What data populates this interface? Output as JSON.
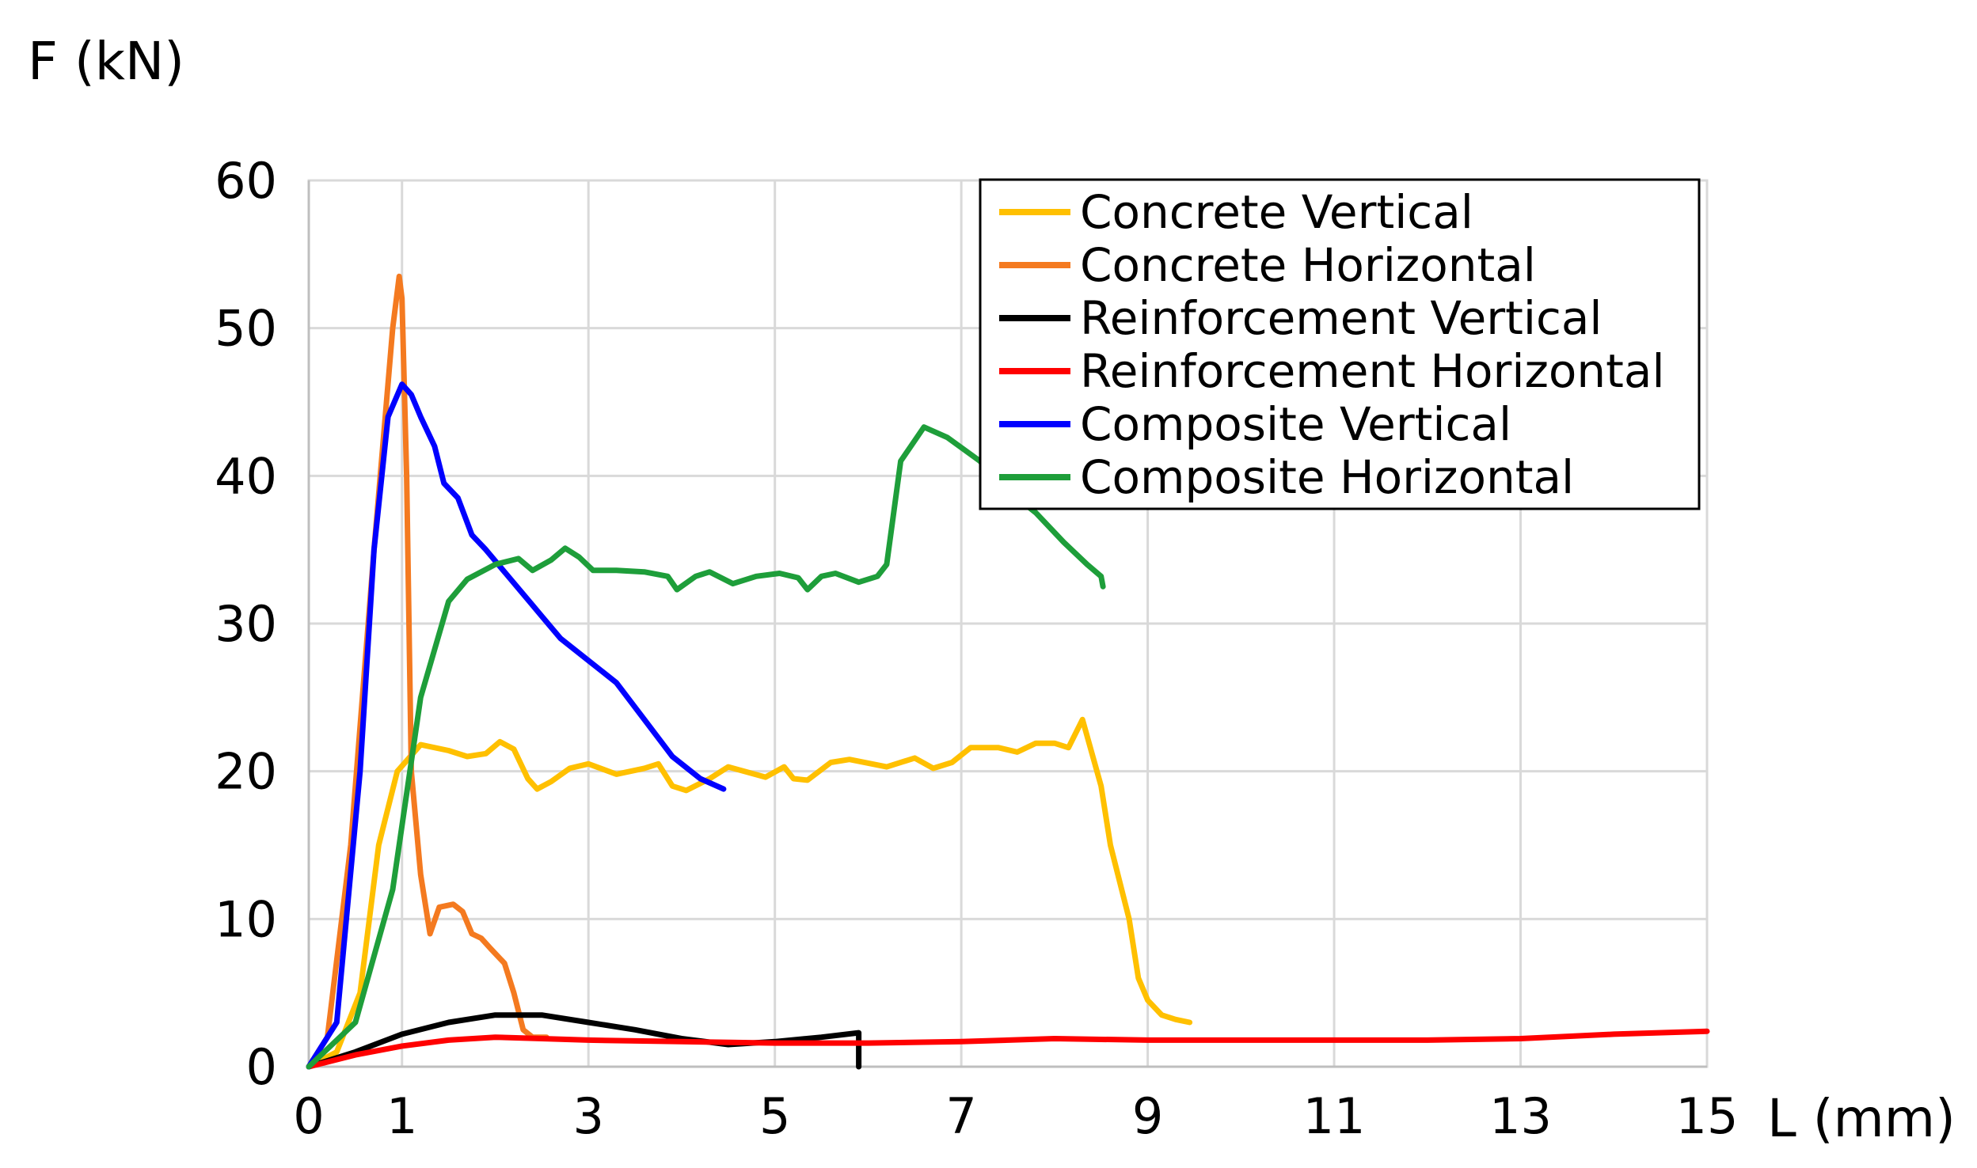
{
  "chart_data": {
    "type": "line",
    "xlabel": "L (mm)",
    "ylabel": "F (kN)",
    "xlim": [
      0,
      15
    ],
    "ylim": [
      0,
      60
    ],
    "x_ticks": [
      0,
      1,
      3,
      5,
      7,
      9,
      11,
      13,
      15
    ],
    "y_ticks": [
      0,
      10,
      20,
      30,
      40,
      50,
      60
    ],
    "grid": true,
    "legend_position": "top-right",
    "series": [
      {
        "name": "Concrete  Vertical",
        "color": "#FFC000",
        "points": [
          [
            0,
            0
          ],
          [
            0.3,
            1
          ],
          [
            0.55,
            5
          ],
          [
            0.75,
            15
          ],
          [
            0.95,
            20
          ],
          [
            1.2,
            21.8
          ],
          [
            1.5,
            21.4
          ],
          [
            1.7,
            21
          ],
          [
            1.9,
            21.2
          ],
          [
            2.05,
            22
          ],
          [
            2.2,
            21.5
          ],
          [
            2.35,
            19.5
          ],
          [
            2.45,
            18.8
          ],
          [
            2.6,
            19.3
          ],
          [
            2.8,
            20.2
          ],
          [
            3,
            20.5
          ],
          [
            3.3,
            19.8
          ],
          [
            3.6,
            20.2
          ],
          [
            3.75,
            20.5
          ],
          [
            3.9,
            19
          ],
          [
            4.05,
            18.7
          ],
          [
            4.3,
            19.5
          ],
          [
            4.5,
            20.3
          ],
          [
            4.9,
            19.6
          ],
          [
            5.1,
            20.3
          ],
          [
            5.2,
            19.5
          ],
          [
            5.35,
            19.4
          ],
          [
            5.6,
            20.6
          ],
          [
            5.8,
            20.8
          ],
          [
            6.2,
            20.3
          ],
          [
            6.5,
            20.9
          ],
          [
            6.7,
            20.2
          ],
          [
            6.9,
            20.6
          ],
          [
            7.1,
            21.6
          ],
          [
            7.4,
            21.6
          ],
          [
            7.6,
            21.3
          ],
          [
            7.8,
            21.9
          ],
          [
            8.0,
            21.9
          ],
          [
            8.15,
            21.6
          ],
          [
            8.3,
            23.5
          ],
          [
            8.5,
            19
          ],
          [
            8.6,
            15
          ],
          [
            8.8,
            10
          ],
          [
            8.9,
            6
          ],
          [
            9.0,
            4.5
          ],
          [
            9.15,
            3.5
          ],
          [
            9.3,
            3.2
          ],
          [
            9.45,
            3
          ]
        ]
      },
      {
        "name": "Concrete Horizontal",
        "color": "#F47A20",
        "points": [
          [
            0,
            0
          ],
          [
            0.2,
            2
          ],
          [
            0.45,
            15
          ],
          [
            0.7,
            35
          ],
          [
            0.9,
            50
          ],
          [
            0.97,
            53.5
          ],
          [
            1.0,
            52
          ],
          [
            1.05,
            40
          ],
          [
            1.1,
            20
          ],
          [
            1.2,
            13
          ],
          [
            1.3,
            9
          ],
          [
            1.4,
            10.8
          ],
          [
            1.55,
            11
          ],
          [
            1.65,
            10.5
          ],
          [
            1.75,
            9
          ],
          [
            1.85,
            8.7
          ],
          [
            1.95,
            8
          ],
          [
            2.1,
            7
          ],
          [
            2.2,
            5
          ],
          [
            2.3,
            2.5
          ],
          [
            2.4,
            2
          ],
          [
            2.55,
            2
          ]
        ]
      },
      {
        "name": "Reinforcement Vertical",
        "color": "#000000",
        "points": [
          [
            0,
            0
          ],
          [
            0.5,
            1
          ],
          [
            1,
            2.2
          ],
          [
            1.5,
            3
          ],
          [
            2,
            3.5
          ],
          [
            2.5,
            3.5
          ],
          [
            3,
            3
          ],
          [
            3.5,
            2.5
          ],
          [
            4,
            1.9
          ],
          [
            4.5,
            1.5
          ],
          [
            5,
            1.7
          ],
          [
            5.5,
            2
          ],
          [
            5.9,
            2.3
          ],
          [
            5.9,
            0
          ]
        ]
      },
      {
        "name": "Reinforcement Horizontal",
        "color": "#FF0000",
        "points": [
          [
            0,
            0
          ],
          [
            0.5,
            0.8
          ],
          [
            1,
            1.4
          ],
          [
            1.5,
            1.8
          ],
          [
            2,
            2
          ],
          [
            2.5,
            1.9
          ],
          [
            3,
            1.8
          ],
          [
            4,
            1.7
          ],
          [
            5,
            1.6
          ],
          [
            6,
            1.6
          ],
          [
            7,
            1.7
          ],
          [
            8,
            1.9
          ],
          [
            9,
            1.8
          ],
          [
            10,
            1.8
          ],
          [
            11,
            1.8
          ],
          [
            12,
            1.8
          ],
          [
            13,
            1.9
          ],
          [
            14,
            2.2
          ],
          [
            15,
            2.4
          ]
        ]
      },
      {
        "name": "Composite Vertical",
        "color": "#0000FF",
        "points": [
          [
            0,
            0
          ],
          [
            0.3,
            3
          ],
          [
            0.55,
            20
          ],
          [
            0.7,
            35
          ],
          [
            0.85,
            44
          ],
          [
            1.0,
            46.2
          ],
          [
            1.1,
            45.5
          ],
          [
            1.2,
            44
          ],
          [
            1.35,
            42
          ],
          [
            1.45,
            39.5
          ],
          [
            1.6,
            38.5
          ],
          [
            1.75,
            36
          ],
          [
            1.9,
            35
          ],
          [
            2.1,
            33.5
          ],
          [
            2.3,
            32
          ],
          [
            2.5,
            30.5
          ],
          [
            2.7,
            29
          ],
          [
            3.0,
            27.5
          ],
          [
            3.3,
            26
          ],
          [
            3.6,
            23.5
          ],
          [
            3.9,
            21
          ],
          [
            4.2,
            19.5
          ],
          [
            4.45,
            18.8
          ]
        ]
      },
      {
        "name": "Composite Horizontal",
        "color": "#1E9E3A",
        "points": [
          [
            0,
            0
          ],
          [
            0.5,
            3
          ],
          [
            0.9,
            12
          ],
          [
            1.2,
            25
          ],
          [
            1.5,
            31.5
          ],
          [
            1.7,
            33
          ],
          [
            2.0,
            34
          ],
          [
            2.25,
            34.4
          ],
          [
            2.4,
            33.6
          ],
          [
            2.6,
            34.3
          ],
          [
            2.75,
            35.1
          ],
          [
            2.9,
            34.5
          ],
          [
            3.05,
            33.6
          ],
          [
            3.3,
            33.6
          ],
          [
            3.6,
            33.5
          ],
          [
            3.85,
            33.2
          ],
          [
            3.95,
            32.3
          ],
          [
            4.15,
            33.2
          ],
          [
            4.3,
            33.5
          ],
          [
            4.55,
            32.7
          ],
          [
            4.8,
            33.2
          ],
          [
            5.05,
            33.4
          ],
          [
            5.25,
            33.1
          ],
          [
            5.35,
            32.3
          ],
          [
            5.5,
            33.2
          ],
          [
            5.65,
            33.4
          ],
          [
            5.9,
            32.8
          ],
          [
            6.1,
            33.2
          ],
          [
            6.2,
            34
          ],
          [
            6.35,
            41
          ],
          [
            6.6,
            43.3
          ],
          [
            6.85,
            42.6
          ],
          [
            7.2,
            41
          ],
          [
            7.5,
            39
          ],
          [
            7.8,
            37.5
          ],
          [
            8.1,
            35.5
          ],
          [
            8.35,
            34
          ],
          [
            8.5,
            33.2
          ],
          [
            8.52,
            32.5
          ]
        ]
      }
    ]
  }
}
